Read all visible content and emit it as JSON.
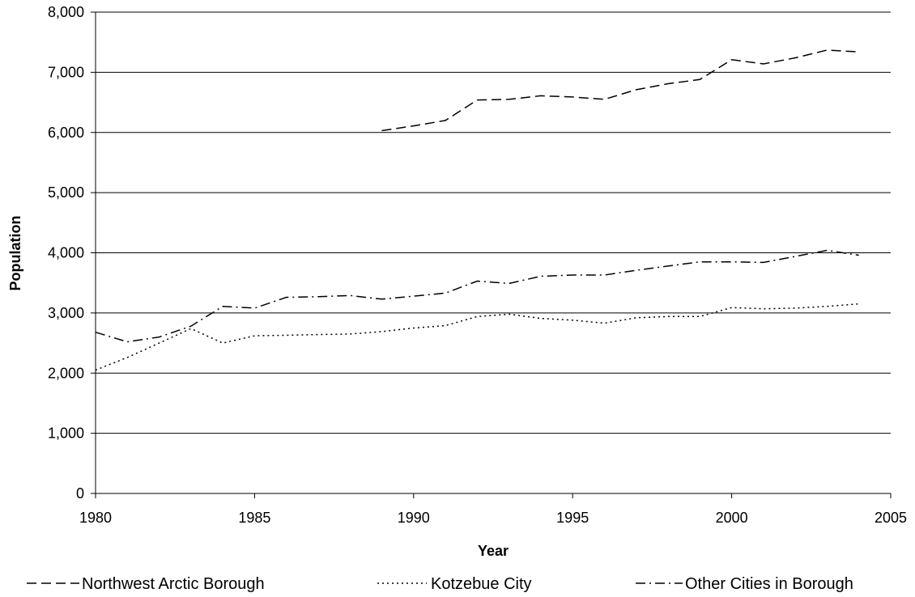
{
  "chart_data": {
    "type": "line",
    "title": "",
    "xlabel": "Year",
    "ylabel": "Population",
    "xlim": [
      1980,
      2005
    ],
    "ylim": [
      0,
      8000
    ],
    "x_ticks": [
      "1980",
      "1985",
      "1990",
      "1995",
      "2000",
      "2005"
    ],
    "y_ticks": [
      "0",
      "1,000",
      "2,000",
      "3,000",
      "4,000",
      "5,000",
      "6,000",
      "7,000",
      "8,000"
    ],
    "grid": "horizontal",
    "legend_position": "bottom",
    "series": [
      {
        "name": "Northwest Arctic Borough",
        "style": "dashed",
        "x": [
          1989,
          1990,
          1991,
          1992,
          1993,
          1994,
          1995,
          1996,
          1997,
          1998,
          1999,
          2000,
          2001,
          2002,
          2003,
          2004
        ],
        "values": [
          6030,
          6110,
          6200,
          6540,
          6550,
          6610,
          6590,
          6550,
          6710,
          6810,
          6880,
          7210,
          7140,
          7240,
          7370,
          7340
        ]
      },
      {
        "name": "Kotzebue City",
        "style": "dotted",
        "x": [
          1980,
          1981,
          1982,
          1983,
          1984,
          1985,
          1986,
          1987,
          1988,
          1989,
          1990,
          1991,
          1992,
          1993,
          1994,
          1995,
          1996,
          1997,
          1998,
          1999,
          2000,
          2001,
          2002,
          2003,
          2004
        ],
        "values": [
          2050,
          2260,
          2500,
          2740,
          2500,
          2620,
          2630,
          2640,
          2650,
          2690,
          2750,
          2790,
          2940,
          2980,
          2910,
          2880,
          2830,
          2920,
          2940,
          2940,
          3090,
          3070,
          3080,
          3110,
          3150
        ]
      },
      {
        "name": "Other Cities in Borough",
        "style": "dash-dot",
        "x": [
          1980,
          1981,
          1982,
          1983,
          1984,
          1985,
          1986,
          1987,
          1988,
          1989,
          1990,
          1991,
          1992,
          1993,
          1994,
          1995,
          1996,
          1997,
          1998,
          1999,
          2000,
          2001,
          2002,
          2003,
          2004
        ],
        "values": [
          2680,
          2520,
          2600,
          2780,
          3110,
          3080,
          3260,
          3270,
          3290,
          3230,
          3280,
          3330,
          3530,
          3490,
          3610,
          3630,
          3630,
          3710,
          3780,
          3850,
          3850,
          3840,
          3940,
          4040,
          3960
        ]
      }
    ]
  }
}
